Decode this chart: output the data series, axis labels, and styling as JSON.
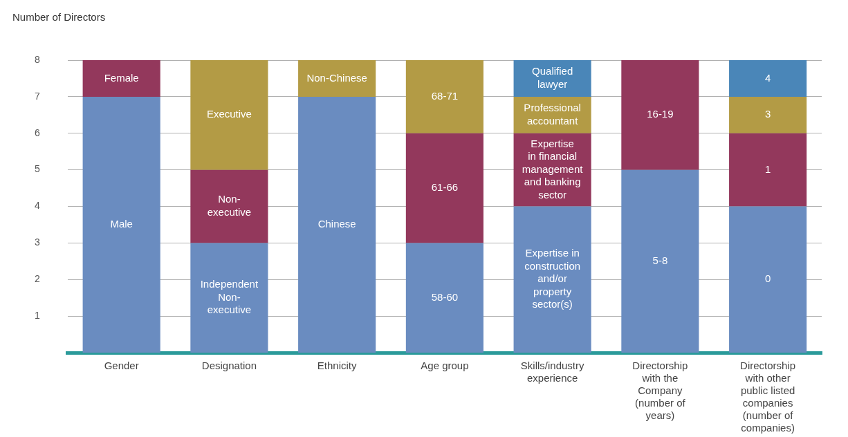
{
  "chart_data": {
    "type": "bar",
    "stacked": true,
    "ylabel": "Number of Directors",
    "categories": [
      "Gender",
      "Designation",
      "Ethnicity",
      "Age group",
      "Skills/industry\nexperience",
      "Directorship\nwith the\nCompany\n(number of\nyears)",
      "Directorship\nwith other\npublic listed\ncompanies\n(number of\ncompanies)"
    ],
    "series": [
      {
        "color": "#6a8cc0",
        "values": [
          7,
          3,
          7,
          3,
          4,
          5,
          4
        ]
      },
      {
        "colors": [
          "#93385c",
          "#93385c",
          "#b39b45",
          "#93385c",
          "#93385c",
          "#93385c",
          "#93385c"
        ],
        "values": [
          1,
          2,
          1,
          3,
          2,
          3,
          2
        ]
      },
      {
        "color": "#b39b45",
        "values": [
          null,
          3,
          null,
          2,
          1,
          null,
          1
        ]
      },
      {
        "color": "#4a86b8",
        "values": [
          null,
          null,
          null,
          null,
          1,
          null,
          1
        ]
      }
    ],
    "annotations": [
      "Male",
      "Female",
      "Independent\nNon-\nexecutive",
      "Non-\nexecutive",
      "Executive",
      "Chinese",
      "Non-Chinese",
      "58-60",
      "61-66",
      "68-71",
      "Expertise in\nconstruction\nand/or\nproperty\nsector(s)",
      "Expertise\nin financial\nmanagement\nand banking\nsector",
      "Professional\naccountant",
      "Qualified\nlawyer",
      "5-8",
      "16-19",
      "0",
      "1",
      "3",
      "4"
    ],
    "ylim": [
      0,
      8
    ],
    "yticks": [
      1,
      2,
      3,
      4,
      5,
      6,
      7,
      8
    ],
    "grid": true
  }
}
